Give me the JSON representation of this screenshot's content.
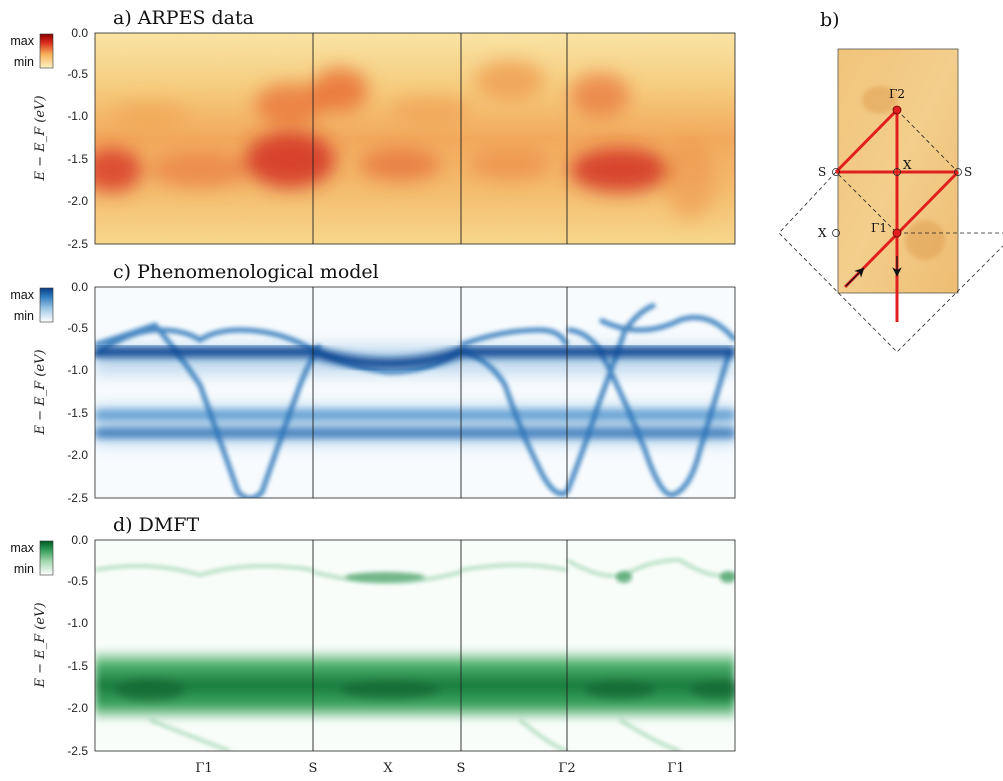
{
  "chart_data": [
    {
      "panel": "a)",
      "title": "a) ARPES data",
      "type": "heatmap",
      "colormap": "red",
      "colorbar": {
        "max_label": "max",
        "min_label": "min",
        "colors": [
          "#fdf3c4",
          "#f6b15a",
          "#d92a1c",
          "#8a0000"
        ]
      },
      "ylabel": "E − E_F (eV)",
      "ylim": [
        -2.5,
        0.0
      ],
      "yticks": [
        "0.0",
        "-0.5",
        "-1.0",
        "-1.5",
        "-2.0",
        "-2.5"
      ],
      "high_intensity_energies_eV": [
        -0.75,
        -1.65
      ],
      "path_segments": [
        "Γ1→S",
        "S→X→S",
        "S→Γ2",
        "Γ2→Γ1"
      ]
    },
    {
      "panel": "c)",
      "title": "c) Phenomenological model",
      "type": "heatmap",
      "colormap": "blue",
      "colorbar": {
        "max_label": "max",
        "min_label": "min",
        "colors": [
          "#ffffff",
          "#9ec6e6",
          "#2e7bbf",
          "#0b3d86"
        ]
      },
      "ylabel": "E − E_F (eV)",
      "ylim": [
        -2.5,
        0.0
      ],
      "yticks": [
        "0.0",
        "-0.5",
        "-1.0",
        "-1.5",
        "-2.0",
        "-2.5"
      ],
      "flat_bands_eV": [
        -0.82,
        -1.55,
        -1.72
      ],
      "dispersing_band_min_eV": -2.5
    },
    {
      "panel": "d)",
      "title": "d) DMFT",
      "type": "heatmap",
      "colormap": "green",
      "colorbar": {
        "max_label": "max",
        "min_label": "min",
        "colors": [
          "#ffffff",
          "#a3d8b0",
          "#2e9a55",
          "#005a25"
        ]
      },
      "ylabel": "E − E_F (eV)",
      "ylim": [
        -2.5,
        0.0
      ],
      "yticks": [
        "0.0",
        "-0.5",
        "-1.0",
        "-1.5",
        "-2.0",
        "-2.5"
      ],
      "broad_band_eV": [
        -1.35,
        -2.05
      ],
      "xtick_labels": [
        "Γ1",
        "S",
        "X",
        "S",
        "Γ2",
        "Γ1"
      ]
    }
  ],
  "panel_b": {
    "title": "b)",
    "labels": {
      "gamma2": "Γ2",
      "gamma1": "Γ1",
      "s_left": "S",
      "s_right": "S",
      "x_center": "X",
      "x_left": "X"
    }
  }
}
